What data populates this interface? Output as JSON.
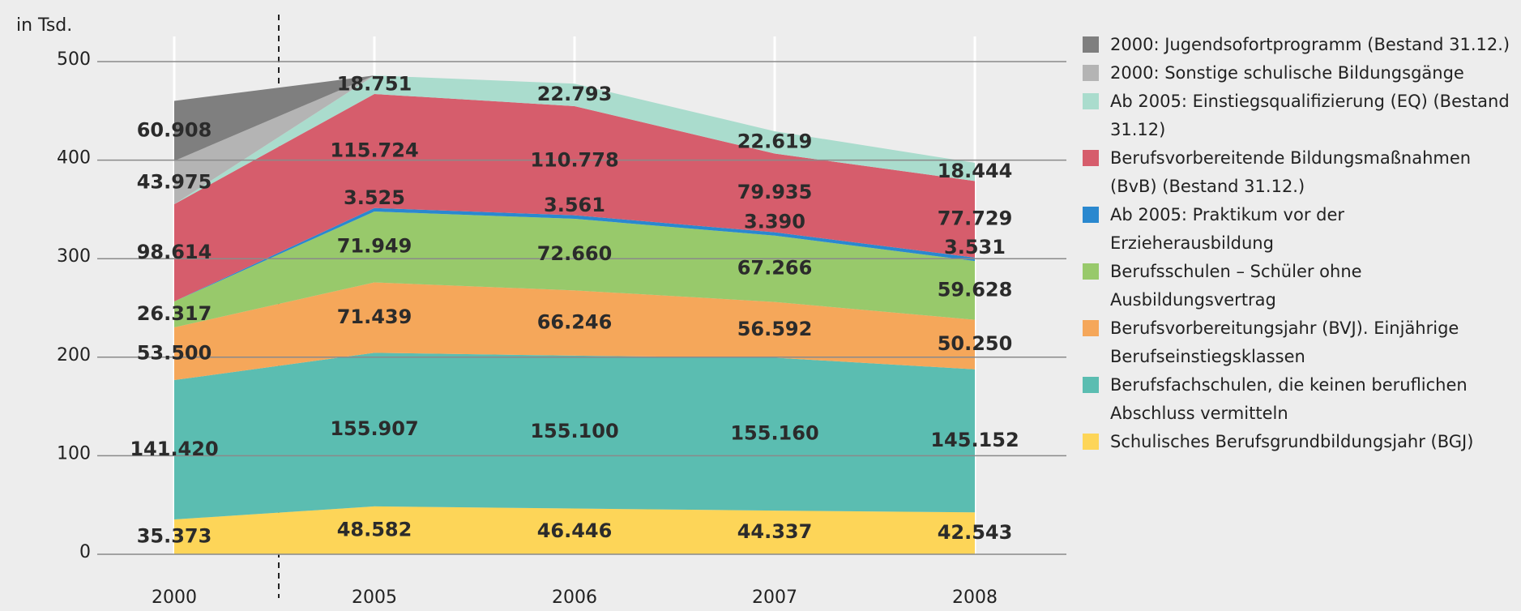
{
  "chart_data": {
    "type": "stacked_area",
    "y_axis_label": "in Tsd.",
    "categories": [
      "2000",
      "2005",
      "2006",
      "2007",
      "2008"
    ],
    "ylim": [
      0,
      500
    ],
    "yticks": [
      0,
      100,
      200,
      300,
      400,
      500
    ],
    "grid": true,
    "series": [
      {
        "name": "Schulisches Berufsgrundbildungsjahr (BGJ)",
        "color": "#fdd558",
        "values": [
          35.373,
          48.582,
          46.446,
          44.337,
          42.543
        ],
        "value_labels": [
          "35.373",
          "48.582",
          "46.446",
          "44.337",
          "42.543"
        ]
      },
      {
        "name": "Berufsfachschulen, die keinen beruflichen Abschluss vermitteln",
        "color": "#5bbdb1",
        "values": [
          141.42,
          155.907,
          155.1,
          155.16,
          145.152
        ],
        "value_labels": [
          "141.420",
          "155.907",
          "155.100",
          "155.160",
          "145.152"
        ]
      },
      {
        "name": "Berufsvorbereitungsjahr (BVJ). Einjährige Berufseinstiegsklassen",
        "color": "#f5a75a",
        "values": [
          53.5,
          71.439,
          66.246,
          56.592,
          50.25
        ],
        "value_labels": [
          "53.500",
          "71.439",
          "66.246",
          "56.592",
          "50.250"
        ]
      },
      {
        "name": "Berufsschulen – Schüler ohne Ausbildungsvertrag",
        "color": "#98c96b",
        "values": [
          26.317,
          71.949,
          72.66,
          67.266,
          59.628
        ],
        "value_labels": [
          "26.317",
          "71.949",
          "72.660",
          "67.266",
          "59.628"
        ]
      },
      {
        "name": "Ab 2005: Praktikum vor der Erzieherausbildung",
        "color": "#2a88cf",
        "values": [
          null,
          3.525,
          3.561,
          3.39,
          3.531
        ],
        "value_labels": [
          null,
          "3.525",
          "3.561",
          "3.390",
          "3.531"
        ]
      },
      {
        "name": "Berufsvorbereitende Bildungsmaßnahmen (BvB) (Bestand 31.12.)",
        "color": "#d65d6c",
        "values": [
          98.614,
          115.724,
          110.778,
          79.935,
          77.729
        ],
        "value_labels": [
          "98.614",
          "115.724",
          "110.778",
          "79.935",
          "77.729"
        ]
      },
      {
        "name": "Ab 2005: Einstiegsqualifizierung (EQ) (Bestand 31.12)",
        "color": "#aadccd",
        "values": [
          null,
          18.751,
          22.793,
          22.619,
          18.444
        ],
        "value_labels": [
          null,
          "18.751",
          "22.793",
          "22.619",
          "18.444"
        ]
      },
      {
        "name": "2000: Sonstige schulische Bildungsgänge",
        "color": "#b4b4b4",
        "values": [
          43.975,
          null,
          null,
          null,
          null
        ],
        "value_labels": [
          "43.975",
          null,
          null,
          null,
          null
        ]
      },
      {
        "name": "2000: Jugendsofortprogramm (Bestand 31.12.)",
        "color": "#7f7f7f",
        "values": [
          60.908,
          null,
          null,
          null,
          null
        ],
        "value_labels": [
          "60.908",
          null,
          null,
          null,
          null
        ]
      }
    ]
  }
}
